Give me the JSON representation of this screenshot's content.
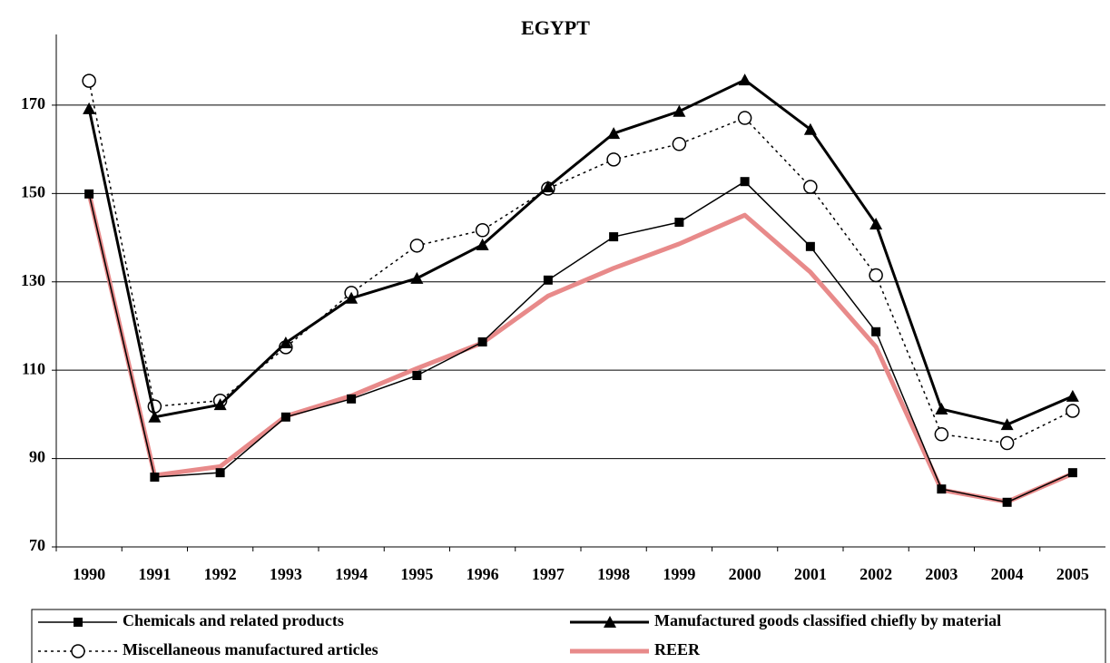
{
  "chart_data": {
    "type": "line",
    "title": "EGYPT",
    "categories": [
      "1990",
      "1991",
      "1992",
      "1993",
      "1994",
      "1995",
      "1996",
      "1997",
      "1998",
      "1999",
      "2000",
      "2001",
      "2002",
      "2003",
      "2004",
      "2005"
    ],
    "ylim": [
      70,
      186
    ],
    "yticks": [
      70,
      90,
      110,
      130,
      150,
      170
    ],
    "grid": true,
    "series": [
      {
        "name": "Chemicals and related products",
        "color": "#000000",
        "marker": "square",
        "values": [
          149.9,
          85.8,
          86.8,
          99.4,
          103.5,
          108.8,
          116.4,
          130.4,
          140.2,
          143.5,
          152.7,
          138.0,
          118.7,
          83.1,
          80.1,
          86.8
        ]
      },
      {
        "name": "Manufactured goods classified chiefly by material",
        "color": "#000000",
        "marker": "triangle",
        "values": [
          169.2,
          99.4,
          102.2,
          116.2,
          126.3,
          130.8,
          138.4,
          151.5,
          163.6,
          168.6,
          175.7,
          164.5,
          143.1,
          101.2,
          97.7,
          104.1
        ]
      },
      {
        "name": "Miscellaneous manufactured articles",
        "color": "#000000",
        "marker": "circle",
        "values": [
          175.5,
          101.8,
          103.1,
          115.2,
          127.5,
          138.2,
          141.7,
          151.1,
          157.7,
          161.2,
          167.1,
          151.5,
          131.5,
          95.5,
          93.5,
          100.8
        ]
      },
      {
        "name": "REER",
        "color": "#e88a8a",
        "marker": "none",
        "values": [
          150.0,
          86.2,
          88.2,
          99.6,
          104.2,
          110.4,
          116.2,
          126.8,
          133.1,
          138.6,
          145.1,
          132.2,
          115.3,
          82.9,
          80.2,
          86.6
        ]
      }
    ]
  }
}
